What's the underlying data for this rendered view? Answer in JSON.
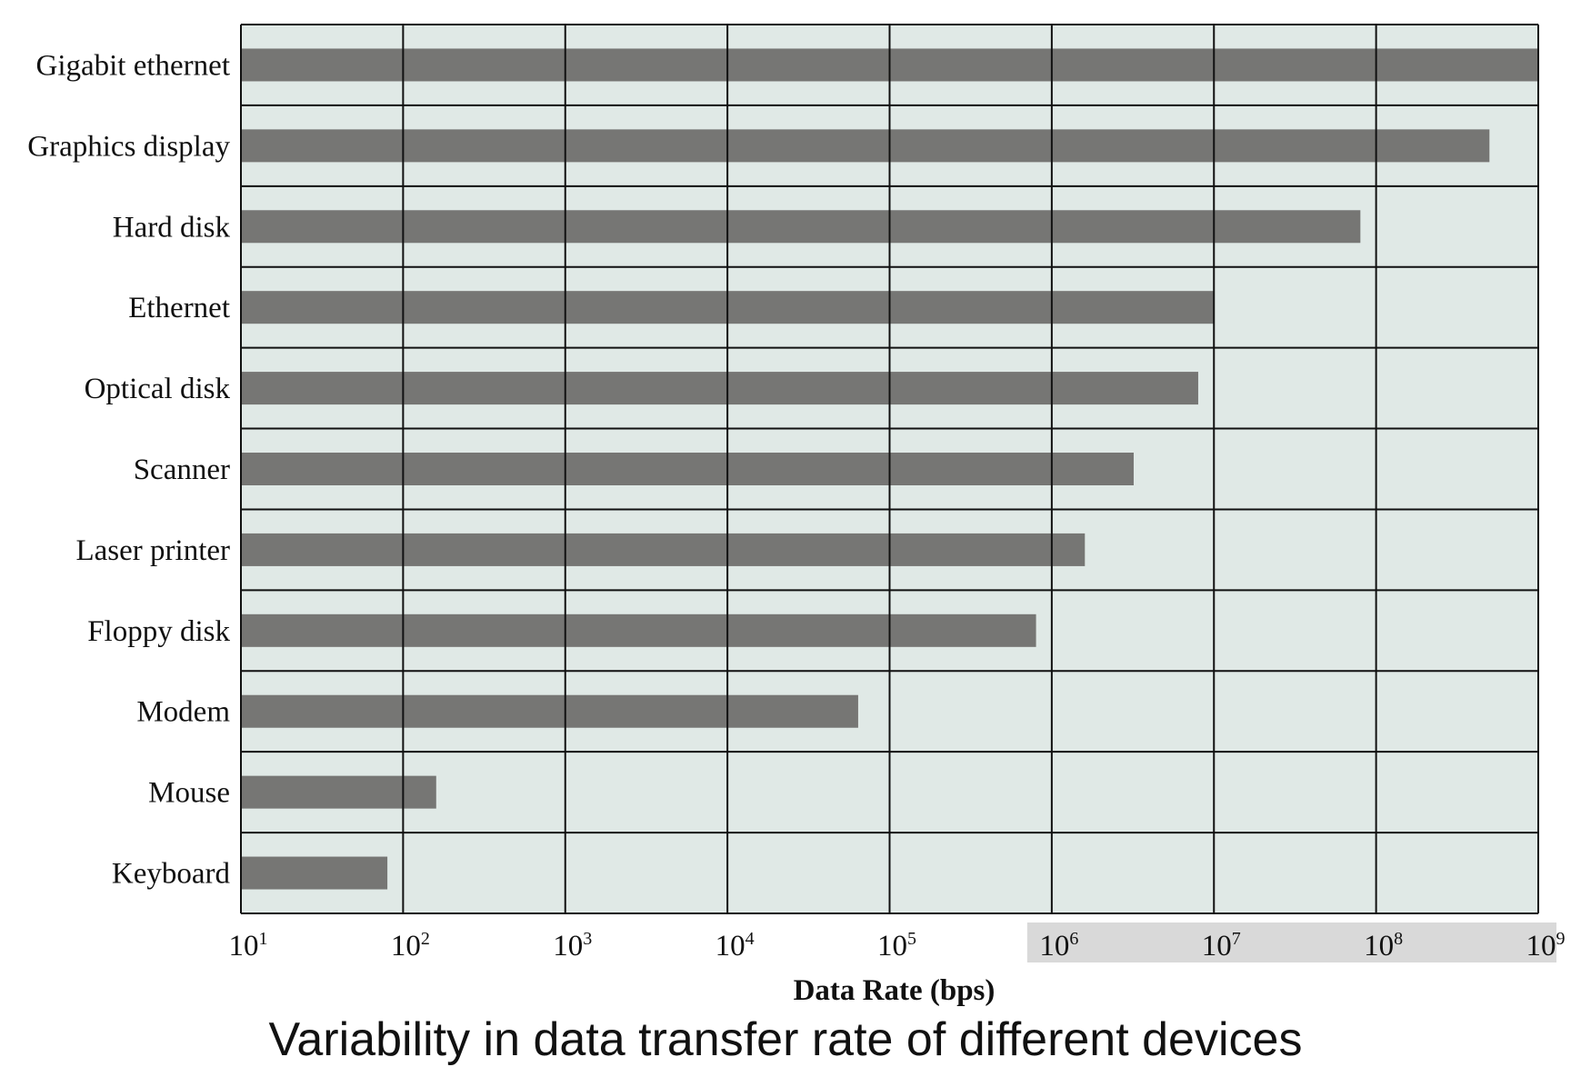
{
  "chart_data": {
    "type": "bar",
    "orientation": "horizontal",
    "categories": [
      "Gigabit ethernet",
      "Graphics display",
      "Hard disk",
      "Ethernet",
      "Optical disk",
      "Scanner",
      "Laser printer",
      "Floppy disk",
      "Modem",
      "Mouse",
      "Keyboard"
    ],
    "values": [
      1000000000,
      500000000,
      80000000,
      10000000,
      8000000,
      3200000,
      1600000,
      800000,
      64000,
      160,
      80
    ],
    "xlabel": "Data Rate (bps)",
    "ylabel": "",
    "xscale": "log",
    "xlim": [
      10,
      1000000000
    ],
    "x_ticks": [
      {
        "base": "10",
        "exp": "1"
      },
      {
        "base": "10",
        "exp": "2"
      },
      {
        "base": "10",
        "exp": "3"
      },
      {
        "base": "10",
        "exp": "4"
      },
      {
        "base": "10",
        "exp": "5"
      },
      {
        "base": "10",
        "exp": "6"
      },
      {
        "base": "10",
        "exp": "7"
      },
      {
        "base": "10",
        "exp": "8"
      },
      {
        "base": "10",
        "exp": "9"
      }
    ],
    "grid": true,
    "bar_color": "#767674",
    "plot_background": "#e0e9e6",
    "highlight_color": "#d9d9d9"
  },
  "caption": "Variability in data transfer rate of different devices"
}
